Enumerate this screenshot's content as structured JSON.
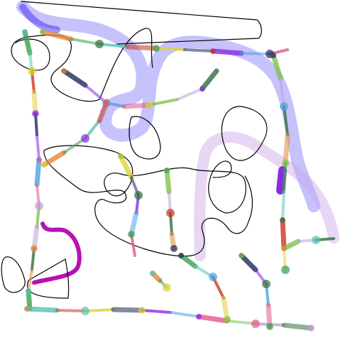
{
  "scene": {
    "kind": "abstract-doodle",
    "background": "#ffffff",
    "palette": {
      "black": "#000000",
      "blue_violet": "#5b4ff5",
      "lavender": "#c9a6e8",
      "magenta": "#b612b4",
      "green": "#3aa050",
      "teal": "#59c2b3",
      "red": "#cc3322",
      "yellow": "#e0d23a",
      "navy": "#1d2a5a"
    }
  }
}
